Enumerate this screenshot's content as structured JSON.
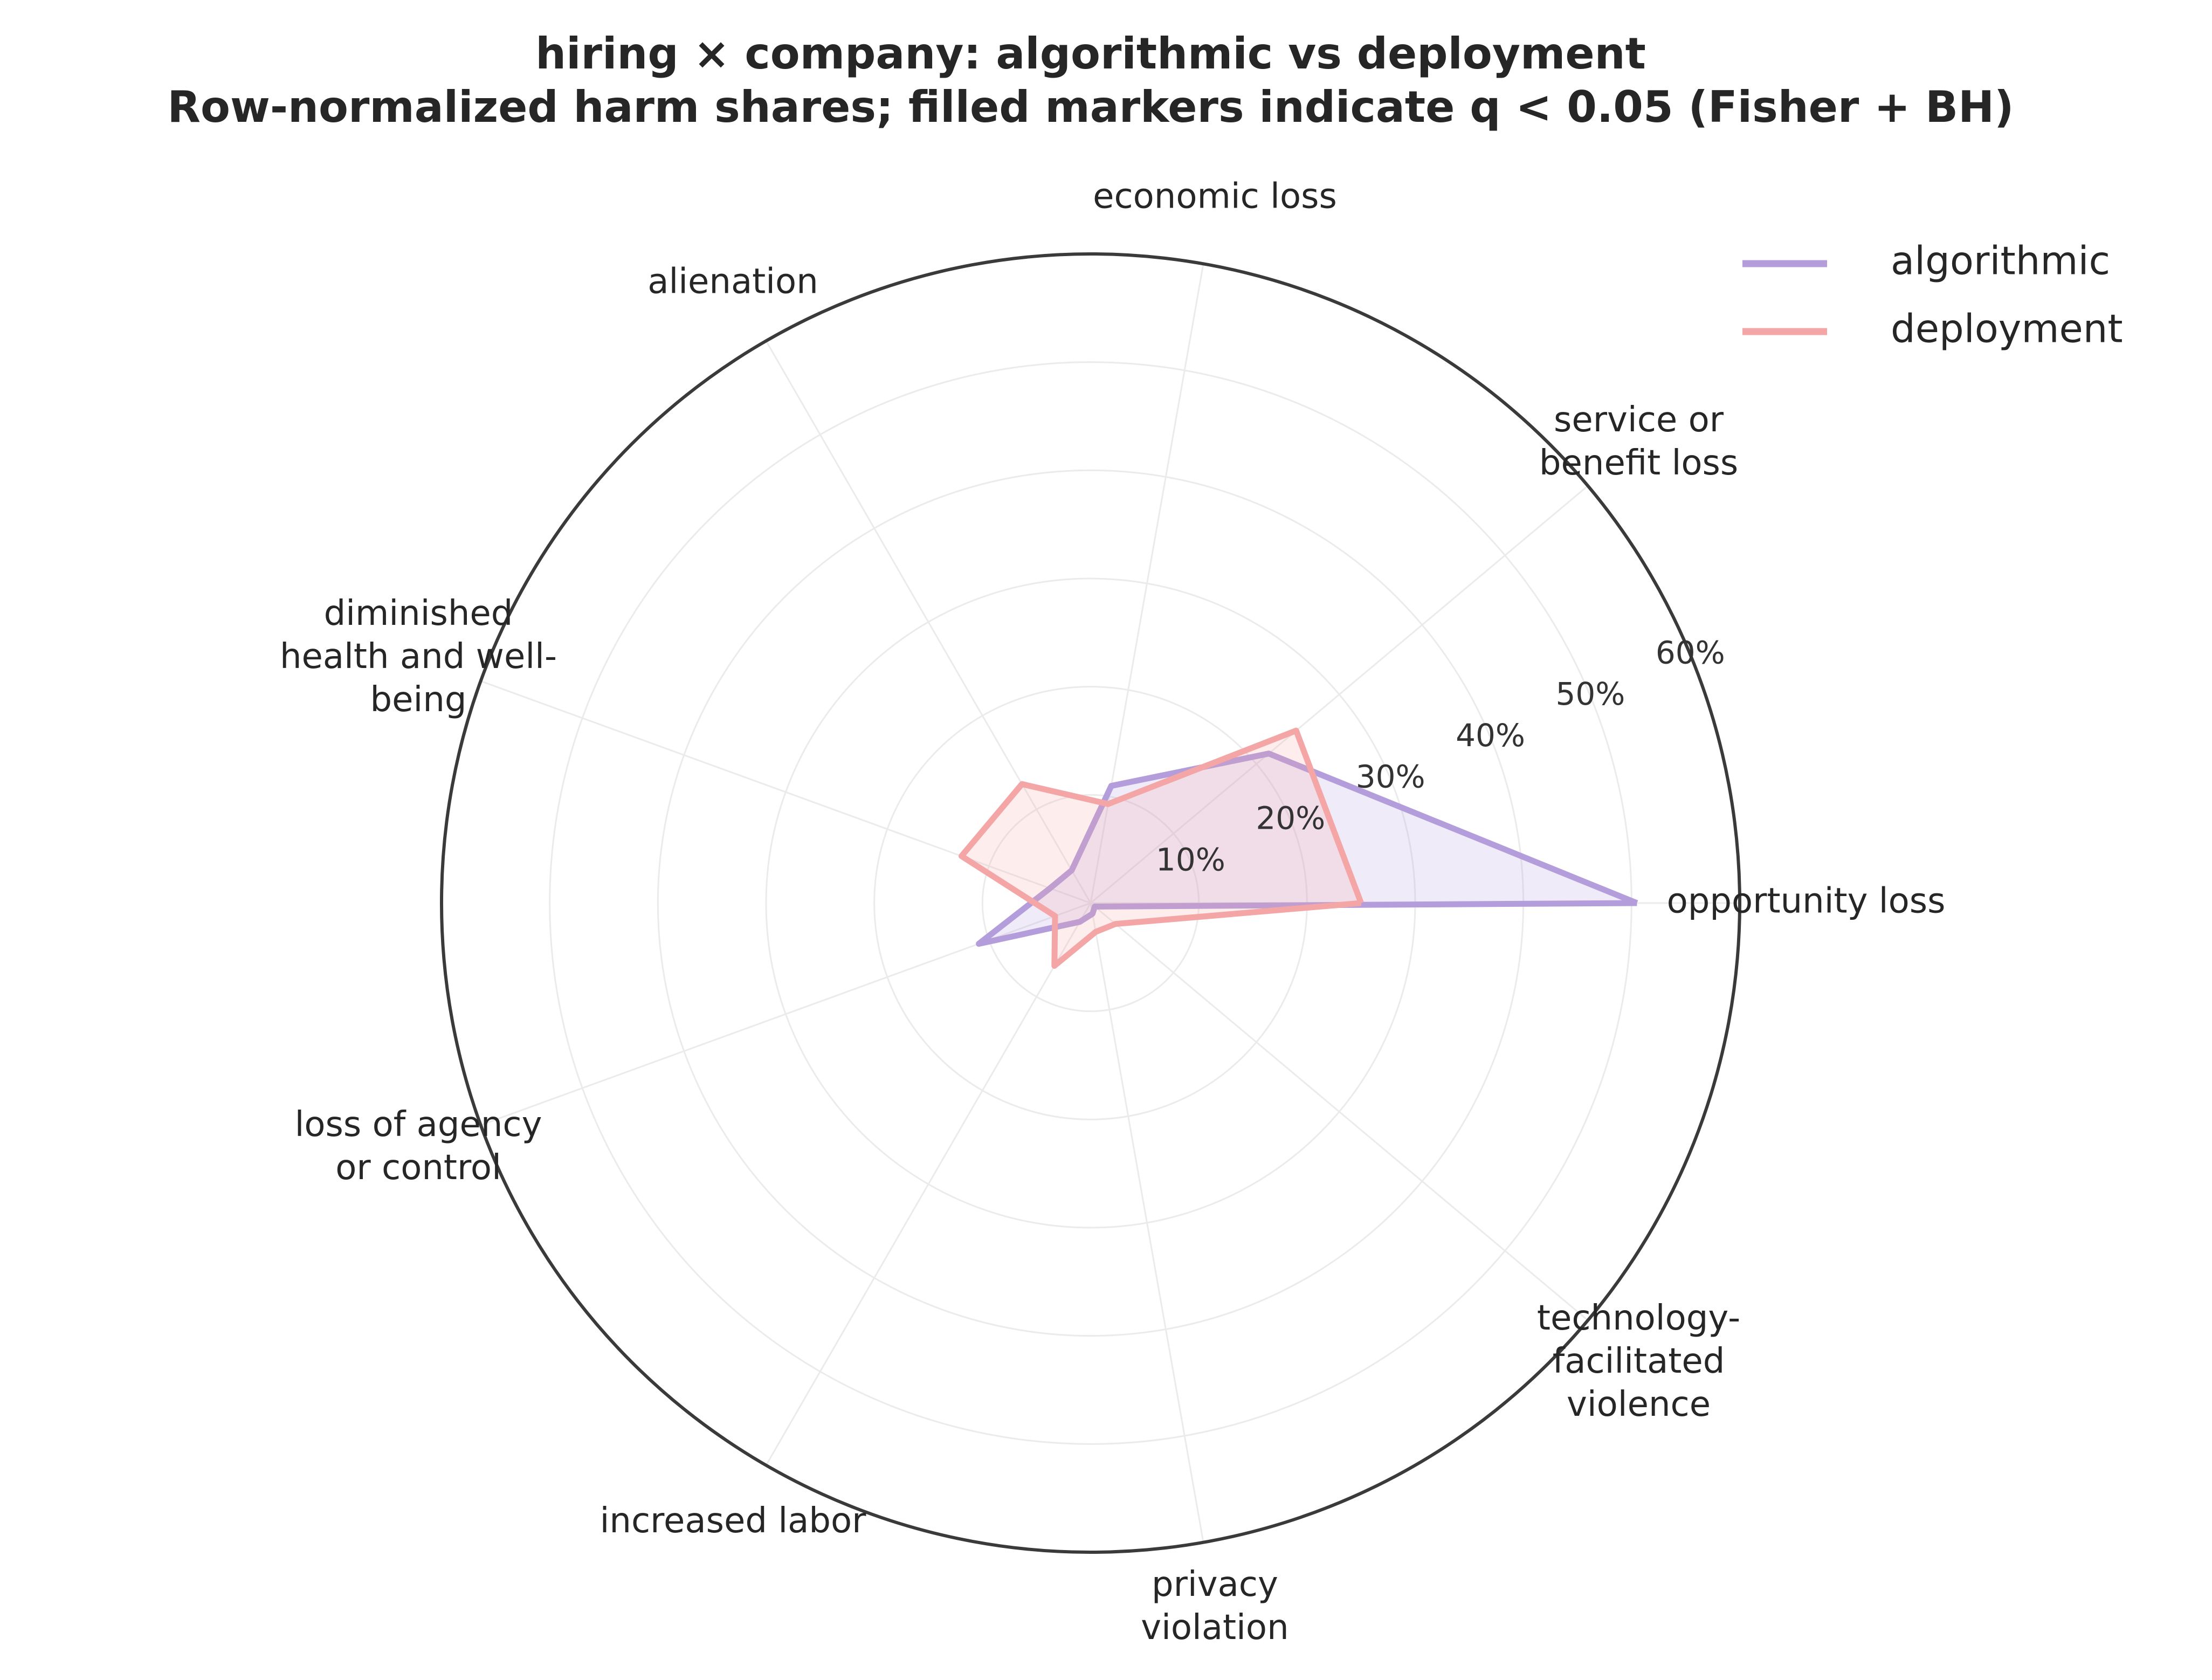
{
  "chart_data": {
    "type": "radar",
    "title": "hiring × company: algorithmic vs deployment",
    "subtitle": "Row-normalized harm shares; filled markers indicate q < 0.05 (Fisher + BH)",
    "categories": [
      "opportunity loss",
      "service or\nbenefit loss",
      "economic loss",
      "alienation",
      "diminished\nhealth and well-\nbeing",
      "loss of agency\nor control",
      "increased labor",
      "privacy\nviolation",
      "technology-\nfacilitated\nviolence"
    ],
    "series": [
      {
        "name": "algorithmic",
        "color": "#b39ddb",
        "values": [
          50.5,
          21.5,
          11,
          3.5,
          4,
          11,
          2,
          1,
          0.5
        ]
      },
      {
        "name": "deployment",
        "color": "#f4a6a6",
        "values": [
          25,
          24.8,
          9.3,
          12.7,
          12.7,
          3.5,
          6.7,
          2.7,
          3
        ]
      }
    ],
    "ylim": [
      0,
      60
    ],
    "yticks": [
      {
        "value": 10,
        "label": "10%"
      },
      {
        "value": 20,
        "label": "20%"
      },
      {
        "value": 30,
        "label": "30%"
      },
      {
        "value": 40,
        "label": "40%"
      },
      {
        "value": 50,
        "label": "50%"
      },
      {
        "value": 60,
        "label": "60%"
      }
    ],
    "grid": true,
    "legend": "upper right"
  }
}
